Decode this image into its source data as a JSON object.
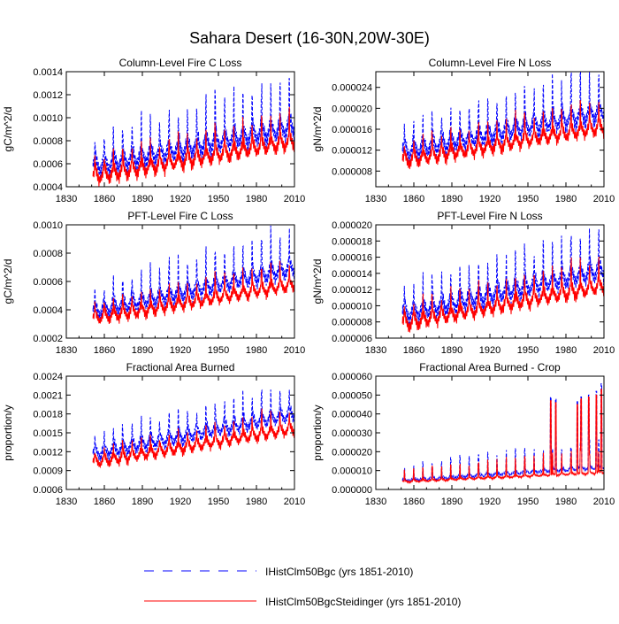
{
  "figure": {
    "title": "Sahara Desert (16-30N,20W-30E)"
  },
  "legend": {
    "placement": "bottom-center",
    "entries": [
      {
        "label": "IHistClm50Bgc (yrs 1851-2010)",
        "color": "#0000ff",
        "dash": "dashed"
      },
      {
        "label": "IHistClm50BgcSteidinger (yrs 1851-2010)",
        "color": "#ff0000",
        "dash": "solid"
      }
    ]
  },
  "colors": {
    "series_1": "#0000ff",
    "series_2": "#ff0000",
    "axes": "#000000",
    "background": "#ffffff"
  },
  "chart_data": [
    {
      "type": "line",
      "title": "Column-Level Fire C Loss",
      "ylabel": "gC/m^2/d",
      "xlim": [
        1830,
        2010
      ],
      "xticks": [
        "1830",
        "1860",
        "1890",
        "1920",
        "1950",
        "1980",
        "2010"
      ],
      "ylim": [
        0.0004,
        0.0014
      ],
      "yticks": [
        "0.0004",
        "0.0006",
        "0.0008",
        "0.0010",
        "0.0012",
        "0.0014"
      ],
      "grid": false,
      "data_start": 1851,
      "data_end": 2010,
      "series": [
        {
          "name": "IHistClm50Bgc (yrs 1851-2010)",
          "color": "#0000ff",
          "dash": "dashed",
          "start": 0.00058,
          "end": 0.00093,
          "amplitude": 0.00012,
          "spike_amplitude": 0.00032
        },
        {
          "name": "IHistClm50BgcSteidinger (yrs 1851-2010)",
          "color": "#ff0000",
          "dash": "solid",
          "start": 0.00049,
          "end": 0.0008,
          "amplitude": 9e-05,
          "spike_amplitude": 0.0002
        }
      ]
    },
    {
      "type": "line",
      "title": "Column-Level Fire N Loss",
      "ylabel": "gN/m^2/d",
      "xlim": [
        1830,
        2010
      ],
      "xticks": [
        "1830",
        "1860",
        "1890",
        "1920",
        "1950",
        "1980",
        "2010"
      ],
      "ylim": [
        5e-06,
        2.7e-05
      ],
      "yticks": [
        "0.000008",
        "0.000012",
        "0.000016",
        "0.000020",
        "0.000024"
      ],
      "grid": false,
      "data_start": 1851,
      "data_end": 2010,
      "series": [
        {
          "name": "IHistClm50Bgc (yrs 1851-2010)",
          "color": "#0000ff",
          "dash": "dashed",
          "start": 1.18e-05,
          "end": 1.95e-05,
          "amplitude": 2.5e-06,
          "spike_amplitude": 6e-06
        },
        {
          "name": "IHistClm50BgcSteidinger (yrs 1851-2010)",
          "color": "#ff0000",
          "dash": "solid",
          "start": 1e-05,
          "end": 1.65e-05,
          "amplitude": 1.8e-06,
          "spike_amplitude": 4e-06
        }
      ]
    },
    {
      "type": "line",
      "title": "PFT-Level Fire C Loss",
      "ylabel": "gC/m^2/d",
      "xlim": [
        1830,
        2010
      ],
      "xticks": [
        "1830",
        "1860",
        "1890",
        "1920",
        "1950",
        "1980",
        "2010"
      ],
      "ylim": [
        0.0002,
        0.001
      ],
      "yticks": [
        "0.0002",
        "0.0004",
        "0.0006",
        "0.0008",
        "0.0010"
      ],
      "grid": false,
      "data_start": 1851,
      "data_end": 2010,
      "series": [
        {
          "name": "IHistClm50Bgc (yrs 1851-2010)",
          "color": "#0000ff",
          "dash": "dashed",
          "start": 0.00039,
          "end": 0.0007,
          "amplitude": 8e-05,
          "spike_amplitude": 0.0002
        },
        {
          "name": "IHistClm50BgcSteidinger (yrs 1851-2010)",
          "color": "#ff0000",
          "dash": "solid",
          "start": 0.00034,
          "end": 0.00058,
          "amplitude": 6e-05,
          "spike_amplitude": 0.00013
        }
      ]
    },
    {
      "type": "line",
      "title": "PFT-Level Fire N Loss",
      "ylabel": "gN/m^2/d",
      "xlim": [
        1830,
        2010
      ],
      "xticks": [
        "1830",
        "1860",
        "1890",
        "1920",
        "1950",
        "1980",
        "2010"
      ],
      "ylim": [
        6e-06,
        2e-05
      ],
      "yticks": [
        "0.000006",
        "0.000008",
        "0.000010",
        "0.000012",
        "0.000014",
        "0.000016",
        "0.000018",
        "0.000020"
      ],
      "grid": false,
      "data_start": 1851,
      "data_end": 2010,
      "series": [
        {
          "name": "IHistClm50Bgc (yrs 1851-2010)",
          "color": "#0000ff",
          "dash": "dashed",
          "start": 9e-06,
          "end": 1.45e-05,
          "amplitude": 1.6e-06,
          "spike_amplitude": 4e-06
        },
        {
          "name": "IHistClm50BgcSteidinger (yrs 1851-2010)",
          "color": "#ff0000",
          "dash": "solid",
          "start": 7.8e-06,
          "end": 1.25e-05,
          "amplitude": 1.2e-06,
          "spike_amplitude": 2.5e-06
        }
      ]
    },
    {
      "type": "line",
      "title": "Fractional Area Burned",
      "ylabel": "proportion/y",
      "xlim": [
        1830,
        2010
      ],
      "xticks": [
        "1830",
        "1860",
        "1890",
        "1920",
        "1950",
        "1980",
        "2010"
      ],
      "ylim": [
        0.0006,
        0.0024
      ],
      "yticks": [
        "0.0006",
        "0.0009",
        "0.0012",
        "0.0015",
        "0.0018",
        "0.0021",
        "0.0024"
      ],
      "grid": false,
      "data_start": 1851,
      "data_end": 2010,
      "series": [
        {
          "name": "IHistClm50Bgc (yrs 1851-2010)",
          "color": "#0000ff",
          "dash": "dashed",
          "start": 0.00117,
          "end": 0.0018,
          "amplitude": 0.00015,
          "spike_amplitude": 0.00035
        },
        {
          "name": "IHistClm50BgcSteidinger (yrs 1851-2010)",
          "color": "#ff0000",
          "dash": "solid",
          "start": 0.00103,
          "end": 0.00157,
          "amplitude": 0.00012,
          "spike_amplitude": 0.00022
        }
      ]
    },
    {
      "type": "line",
      "title": "Fractional Area Burned - Crop",
      "ylabel": "proportion/y",
      "xlim": [
        1830,
        2010
      ],
      "xticks": [
        "1830",
        "1860",
        "1890",
        "1920",
        "1950",
        "1980",
        "2010"
      ],
      "ylim": [
        0.0,
        6e-05
      ],
      "yticks": [
        "0.000000",
        "0.000010",
        "0.000020",
        "0.000030",
        "0.000040",
        "0.000050",
        "0.000060"
      ],
      "grid": false,
      "data_start": 1851,
      "data_end": 2010,
      "series": [
        {
          "name": "IHistClm50Bgc (yrs 1851-2010)",
          "color": "#0000ff",
          "dash": "dashed",
          "start": 4.8e-06,
          "end": 1.2e-05,
          "amplitude": 1.2e-06,
          "spike_amplitude": 1.2e-05,
          "late_spikes": [
            [
              1968,
              4.9e-05
            ],
            [
              1972,
              4.8e-05
            ],
            [
              1989,
              4.7e-05
            ],
            [
              1992,
              4.9e-05
            ],
            [
              1998,
              5e-05
            ],
            [
              2004,
              5.2e-05
            ],
            [
              2008,
              5.6e-05
            ]
          ]
        },
        {
          "name": "IHistClm50BgcSteidinger (yrs 1851-2010)",
          "color": "#ff0000",
          "dash": "solid",
          "start": 4.2e-06,
          "end": 9e-06,
          "amplitude": 8e-07,
          "spike_amplitude": 1e-05,
          "late_spikes": [
            [
              1968,
              4.7e-05
            ],
            [
              1972,
              4.6e-05
            ],
            [
              1989,
              4.5e-05
            ],
            [
              1992,
              4.8e-05
            ],
            [
              1998,
              4.9e-05
            ],
            [
              2004,
              5e-05
            ],
            [
              2008,
              5.3e-05
            ]
          ]
        }
      ]
    }
  ]
}
